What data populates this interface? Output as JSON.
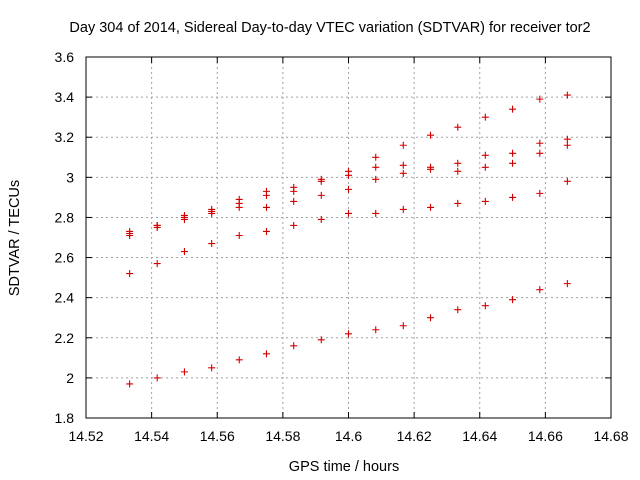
{
  "chart_data": {
    "type": "scatter",
    "title": "Day 304 of 2014, Sidereal Day-to-day VTEC variation (SDTVAR) for receiver tor2",
    "xlabel": "GPS time / hours",
    "ylabel": "SDTVAR / TECUs",
    "xlim": [
      14.52,
      14.68
    ],
    "ylim": [
      1.8,
      3.6
    ],
    "xticks": [
      "14.52",
      "14.54",
      "14.56",
      "14.58",
      "14.6",
      "14.62",
      "14.64",
      "14.66",
      "14.68"
    ],
    "yticks": [
      "1.8",
      "2",
      "2.2",
      "2.4",
      "2.6",
      "2.8",
      "3",
      "3.2",
      "3.4",
      "3.6"
    ],
    "grid": true,
    "marker": "+",
    "color": "#d40000",
    "x": [
      14.5333,
      14.5417,
      14.55,
      14.5583,
      14.5667,
      14.575,
      14.5833,
      14.5917,
      14.6,
      14.6083,
      14.6167,
      14.625,
      14.6333,
      14.6417,
      14.65,
      14.6583,
      14.6667
    ],
    "series": [
      {
        "name": "s1",
        "values": [
          1.97,
          2.0,
          2.03,
          2.05,
          2.09,
          2.12,
          2.16,
          2.19,
          2.22,
          2.24,
          2.26,
          2.3,
          2.34,
          2.36,
          2.39,
          2.44,
          2.47
        ]
      },
      {
        "name": "s2",
        "values": [
          2.52,
          2.57,
          2.63,
          2.67,
          2.71,
          2.73,
          2.76,
          2.79,
          2.82,
          2.82,
          2.84,
          2.85,
          2.87,
          2.88,
          2.9,
          2.92,
          2.98
        ]
      },
      {
        "name": "s3",
        "values": [
          2.71,
          2.75,
          2.79,
          2.82,
          2.85,
          2.85,
          2.88,
          2.91,
          2.94,
          2.99,
          3.02,
          3.04,
          3.03,
          3.05,
          3.07,
          3.12,
          3.16
        ]
      },
      {
        "name": "s4",
        "values": [
          2.72,
          2.76,
          2.8,
          2.83,
          2.87,
          2.91,
          2.93,
          2.98,
          3.01,
          3.05,
          3.06,
          3.05,
          3.07,
          3.11,
          3.12,
          3.17,
          3.19
        ]
      },
      {
        "name": "s5",
        "values": [
          2.73,
          2.76,
          2.81,
          2.84,
          2.89,
          2.93,
          2.95,
          2.99,
          3.03,
          3.1,
          3.16,
          3.21,
          3.25,
          3.3,
          3.34,
          3.39,
          3.41
        ]
      }
    ]
  }
}
